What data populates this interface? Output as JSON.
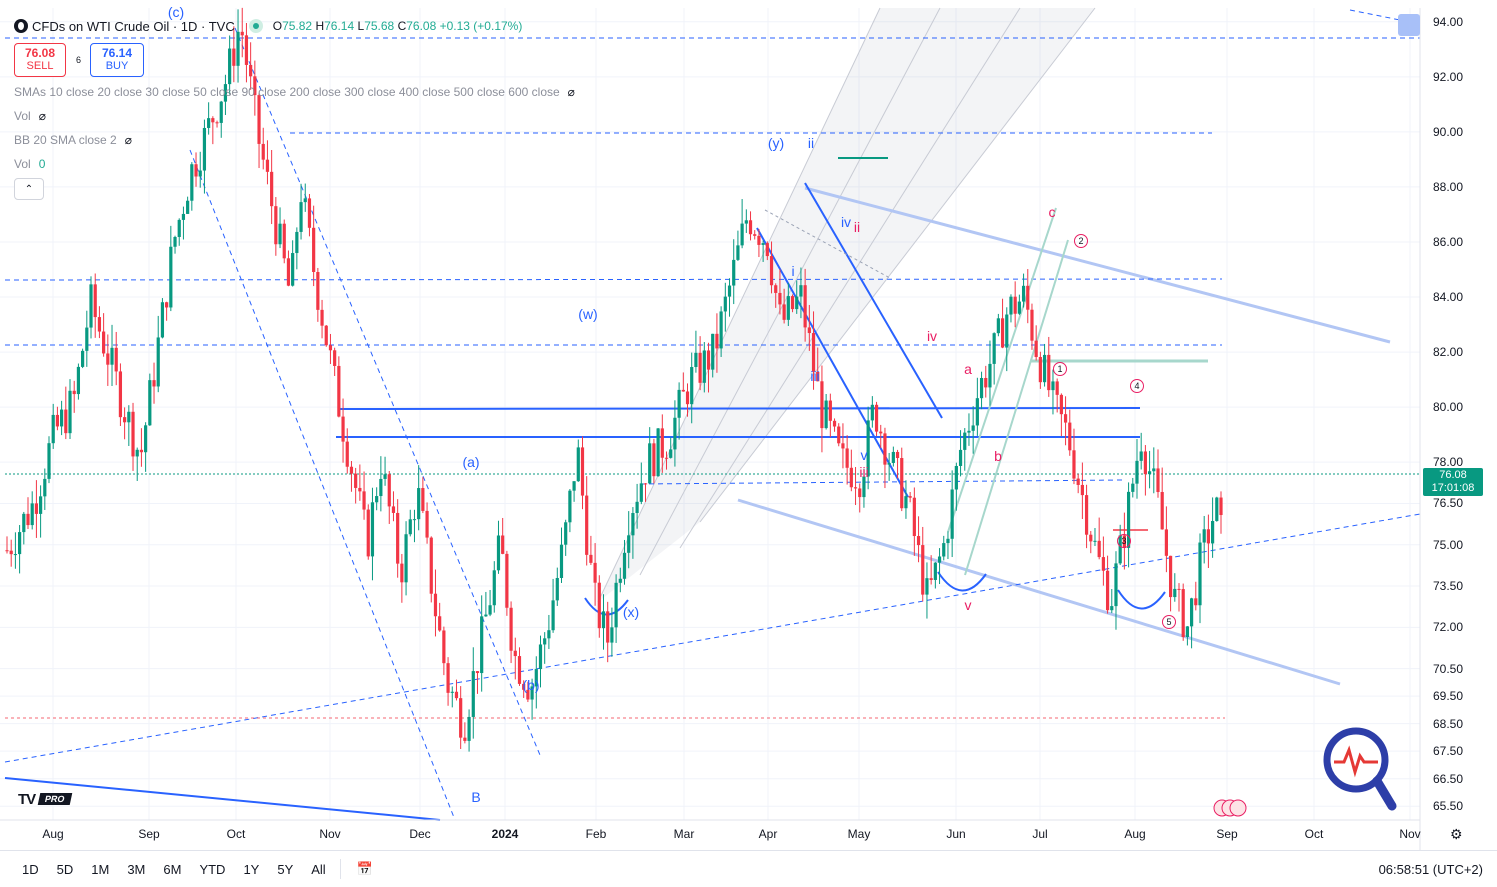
{
  "header": {
    "title": "CFDs on WTI Crude Oil · 1D · TVC",
    "ohlc": [
      {
        "k": "O",
        "v": "75.82"
      },
      {
        "k": "H",
        "v": "76.14"
      },
      {
        "k": "L",
        "v": "75.68"
      },
      {
        "k": "C",
        "v": "76.08"
      }
    ],
    "change": "+0.13 (+0.17%)"
  },
  "trade": {
    "sell_price": "76.08",
    "sell_label": "SELL",
    "buy_price": "76.14",
    "buy_label": "BUY",
    "spread": "6"
  },
  "indicators": {
    "smas": "SMAs 10 close 20 close 30 close 50 close 90 close 200 close 300 close 400 close 500 close 600 close",
    "vol1": "Vol",
    "bb": "BB 20 SMA close 2",
    "vol2": "Vol",
    "vol2_value": "0"
  },
  "current_price": {
    "price": "76.08",
    "countdown": "17:01:08"
  },
  "timeframes": [
    "1D",
    "5D",
    "1M",
    "3M",
    "6M",
    "YTD",
    "1Y",
    "5Y",
    "All"
  ],
  "clock": "06:58:51 (UTC+2)",
  "branding": {
    "tv": "TV",
    "pro": "PRO"
  },
  "colors": {
    "up": "#089981",
    "down": "#f23645",
    "wave_blue": "#2962ff",
    "wave_red": "#e91e63",
    "channel": "#b2c6f4"
  },
  "wave_labels": [
    {
      "t": "(c)",
      "c": "blue"
    },
    {
      "t": "(w)",
      "c": "blue"
    },
    {
      "t": "(a)",
      "c": "blue"
    },
    {
      "t": "(b)",
      "c": "blue"
    },
    {
      "t": "(x)",
      "c": "blue"
    },
    {
      "t": "(y)",
      "c": "blue"
    },
    {
      "t": "ii",
      "c": "blue"
    },
    {
      "t": "iv",
      "c": "blue"
    },
    {
      "t": "i",
      "c": "blue"
    },
    {
      "t": "iii",
      "c": "blue"
    },
    {
      "t": "v",
      "c": "blue"
    },
    {
      "t": "B",
      "c": "blue"
    },
    {
      "t": "ii",
      "c": "red"
    },
    {
      "t": "iii",
      "c": "red"
    },
    {
      "t": "iv",
      "c": "red"
    },
    {
      "t": "v",
      "c": "red"
    },
    {
      "t": "a",
      "c": "red"
    },
    {
      "t": "b",
      "c": "red"
    },
    {
      "t": "c",
      "c": "red"
    },
    {
      "t": "1",
      "c": "circ"
    },
    {
      "t": "2",
      "c": "circ"
    },
    {
      "t": "3",
      "c": "circ"
    },
    {
      "t": "4",
      "c": "circ"
    },
    {
      "t": "5",
      "c": "circ"
    }
  ],
  "chart_data": {
    "type": "candlestick",
    "title": "CFDs on WTI Crude Oil · 1D · TVC",
    "y_ticks": [
      "94.00",
      "92.00",
      "90.00",
      "88.00",
      "86.00",
      "84.00",
      "82.00",
      "80.00",
      "78.00",
      "76.50",
      "75.00",
      "73.50",
      "72.00",
      "70.50",
      "69.50",
      "68.50",
      "67.50",
      "66.50",
      "65.50"
    ],
    "x_ticks": [
      "Aug",
      "Sep",
      "Oct",
      "Nov",
      "Dec",
      "2024",
      "Feb",
      "Mar",
      "Apr",
      "May",
      "Jun",
      "Jul",
      "Aug",
      "Sep",
      "Oct",
      "Nov"
    ],
    "ylim": [
      65,
      94.5
    ],
    "price_path": [
      [
        0,
        74.8
      ],
      [
        8,
        76.5
      ],
      [
        14,
        79
      ],
      [
        20,
        80.2
      ],
      [
        25,
        83.8
      ],
      [
        30,
        82
      ],
      [
        35,
        80
      ],
      [
        40,
        78.2
      ],
      [
        45,
        82
      ],
      [
        50,
        86
      ],
      [
        55,
        88.5
      ],
      [
        60,
        90
      ],
      [
        66,
        92
      ],
      [
        70,
        94
      ],
      [
        75,
        90
      ],
      [
        80,
        87
      ],
      [
        85,
        84
      ],
      [
        88,
        88
      ],
      [
        92,
        85
      ],
      [
        98,
        81
      ],
      [
        103,
        78
      ],
      [
        108,
        75
      ],
      [
        112,
        78
      ],
      [
        118,
        74
      ],
      [
        123,
        77
      ],
      [
        128,
        73
      ],
      [
        132,
        70
      ],
      [
        137,
        68.5
      ],
      [
        143,
        72
      ],
      [
        148,
        75
      ],
      [
        152,
        71
      ],
      [
        157,
        69.8
      ],
      [
        162,
        72
      ],
      [
        167,
        75
      ],
      [
        171,
        78.5
      ],
      [
        176,
        73
      ],
      [
        180,
        71.5
      ],
      [
        186,
        76
      ],
      [
        192,
        78
      ],
      [
        198,
        78.8
      ],
      [
        205,
        81
      ],
      [
        212,
        82
      ],
      [
        218,
        85
      ],
      [
        222,
        87
      ],
      [
        228,
        86
      ],
      [
        232,
        83
      ],
      [
        238,
        84
      ],
      [
        244,
        80
      ],
      [
        250,
        78
      ],
      [
        256,
        77.5
      ],
      [
        260,
        80
      ],
      [
        265,
        78
      ],
      [
        270,
        76.5
      ],
      [
        276,
        73
      ],
      [
        281,
        75
      ],
      [
        286,
        78.5
      ],
      [
        291,
        80.5
      ],
      [
        296,
        82
      ],
      [
        300,
        83.5
      ],
      [
        305,
        84
      ],
      [
        309,
        82
      ],
      [
        314,
        80
      ],
      [
        318,
        79
      ],
      [
        322,
        77
      ],
      [
        327,
        74.5
      ],
      [
        331,
        73
      ],
      [
        335,
        75.5
      ],
      [
        340,
        79
      ],
      [
        345,
        76.5
      ],
      [
        350,
        73
      ],
      [
        354,
        72
      ],
      [
        358,
        74.5
      ],
      [
        362,
        76.2
      ],
      [
        364,
        76.08
      ]
    ]
  }
}
